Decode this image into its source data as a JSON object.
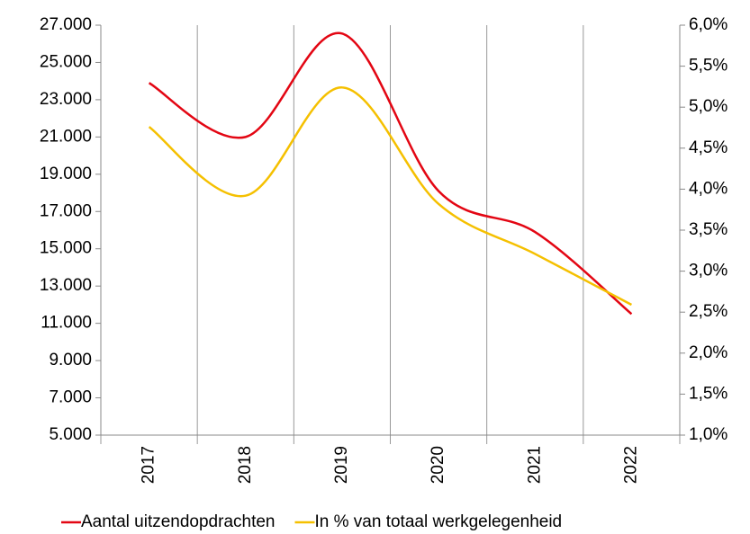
{
  "chart_data": {
    "type": "line",
    "categories": [
      "2017",
      "2018",
      "2019",
      "2020",
      "2021",
      "2022"
    ],
    "series": [
      {
        "name": "Aantal uitzendopdrachten",
        "color": "#e30613",
        "values": [
          23900,
          21000,
          26550,
          18100,
          15900,
          11500
        ]
      },
      {
        "name": "In % van totaal werkgelegenheid",
        "color": "#f5c000",
        "axis": "y2",
        "values": [
          4.76,
          3.92,
          5.24,
          3.82,
          3.21,
          2.59
        ]
      }
    ],
    "ylim": [
      5000,
      27000
    ],
    "yticks": [
      {
        "value": 5000,
        "label": "5.000"
      },
      {
        "value": 7000,
        "label": "7.000"
      },
      {
        "value": 9000,
        "label": "9.000"
      },
      {
        "value": 11000,
        "label": "11.000"
      },
      {
        "value": 13000,
        "label": "13.000"
      },
      {
        "value": 15000,
        "label": "15.000"
      },
      {
        "value": 17000,
        "label": "17.000"
      },
      {
        "value": 19000,
        "label": "19.000"
      },
      {
        "value": 21000,
        "label": "21.000"
      },
      {
        "value": 23000,
        "label": "23.000"
      },
      {
        "value": 25000,
        "label": "25.000"
      },
      {
        "value": 27000,
        "label": "27.000"
      }
    ],
    "y2lim": [
      1.0,
      6.0
    ],
    "y2ticks": [
      {
        "value": 1.0,
        "label": "1,0%"
      },
      {
        "value": 1.5,
        "label": "1,5%"
      },
      {
        "value": 2.0,
        "label": "2,0%"
      },
      {
        "value": 2.5,
        "label": "2,5%"
      },
      {
        "value": 3.0,
        "label": "3,0%"
      },
      {
        "value": 3.5,
        "label": "3,5%"
      },
      {
        "value": 4.0,
        "label": "4,0%"
      },
      {
        "value": 4.5,
        "label": "4,5%"
      },
      {
        "value": 5.0,
        "label": "5,0%"
      },
      {
        "value": 5.5,
        "label": "5,5%"
      },
      {
        "value": 6.0,
        "label": "6,0%"
      }
    ],
    "grid": "vertical",
    "smooth": true,
    "legend": "bottom"
  }
}
